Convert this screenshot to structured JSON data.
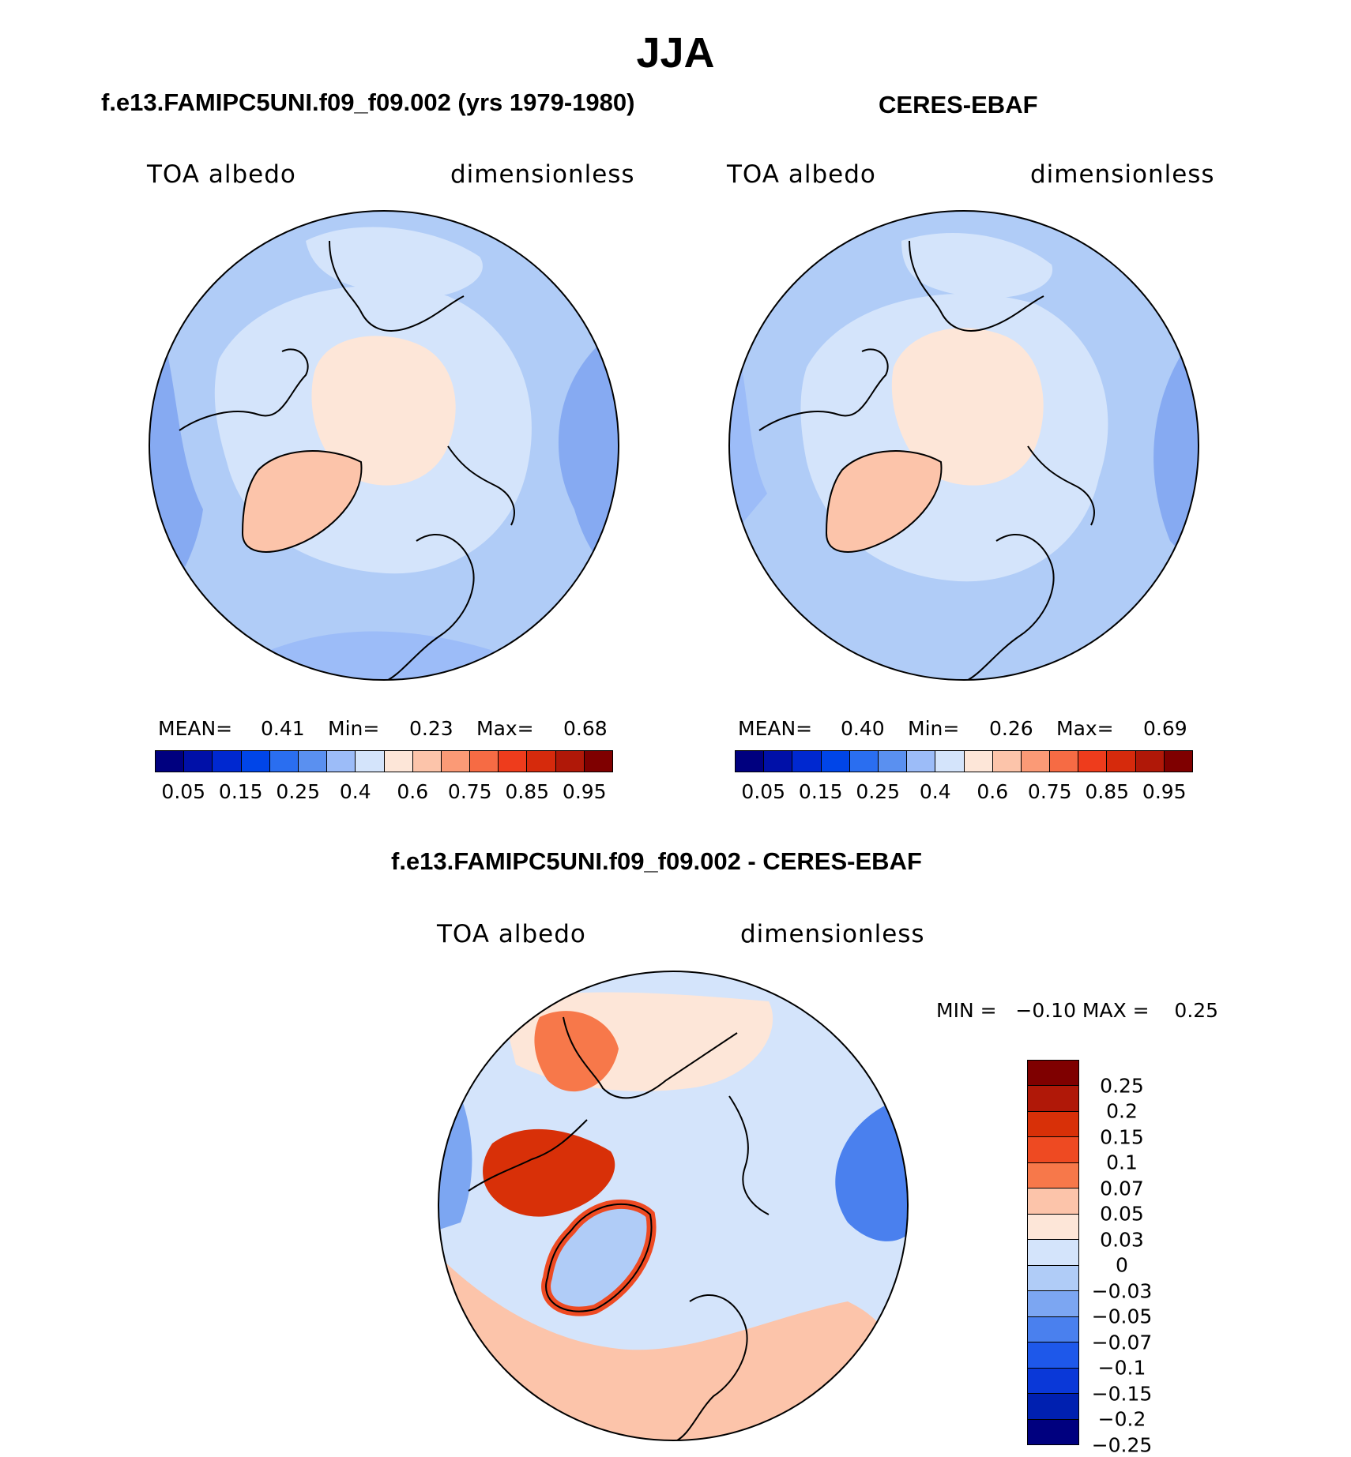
{
  "figure": {
    "title": "JJA"
  },
  "panels": {
    "model": {
      "title": "f.e13.FAMIPC5UNI.f09_f09.002 (yrs 1979-1980)",
      "variable": "TOA albedo",
      "units": "dimensionless",
      "stats": {
        "mean_label": "MEAN=",
        "mean": "0.41",
        "min_label": "Min=",
        "min": "0.23",
        "max_label": "Max=",
        "max": "0.68"
      }
    },
    "obs": {
      "title": "CERES-EBAF",
      "variable": "TOA albedo",
      "units": "dimensionless",
      "stats": {
        "mean_label": "MEAN=",
        "mean": "0.40",
        "min_label": "Min=",
        "min": "0.26",
        "max_label": "Max=",
        "max": "0.69"
      }
    },
    "diff": {
      "title": "f.e13.FAMIPC5UNI.f09_f09.002 - CERES-EBAF",
      "variable": "TOA albedo",
      "units": "dimensionless",
      "minmax": "MIN =   −0.10 MAX =    0.25"
    }
  },
  "colorbars": {
    "abs": {
      "colors": [
        "#00007f",
        "#0010a8",
        "#0028d0",
        "#0045e8",
        "#2a6ef0",
        "#5a90f0",
        "#9cbcf8",
        "#d4e4fb",
        "#fde6d8",
        "#fcc4aa",
        "#fb9a76",
        "#f66b44",
        "#ee3c1c",
        "#d62a0c",
        "#b01808",
        "#7f0000"
      ],
      "ticks": [
        "0.05",
        "0.15",
        "0.25",
        "0.4",
        "0.6",
        "0.75",
        "0.85",
        "0.95"
      ]
    },
    "diff": {
      "colors": [
        "#7f0000",
        "#b01808",
        "#d83008",
        "#ee4a22",
        "#f7784a",
        "#fcc4aa",
        "#fde6d8",
        "#d4e4fb",
        "#b0ccf7",
        "#7ca6f2",
        "#4a80ee",
        "#1e58ea",
        "#0a38d8",
        "#0020b0",
        "#00007f"
      ],
      "ticks": [
        "0.25",
        "0.2",
        "0.15",
        "0.1",
        "0.07",
        "0.05",
        "0.03",
        "0",
        "−0.03",
        "−0.05",
        "−0.07",
        "−0.1",
        "−0.15",
        "−0.2",
        "−0.25"
      ]
    }
  }
}
